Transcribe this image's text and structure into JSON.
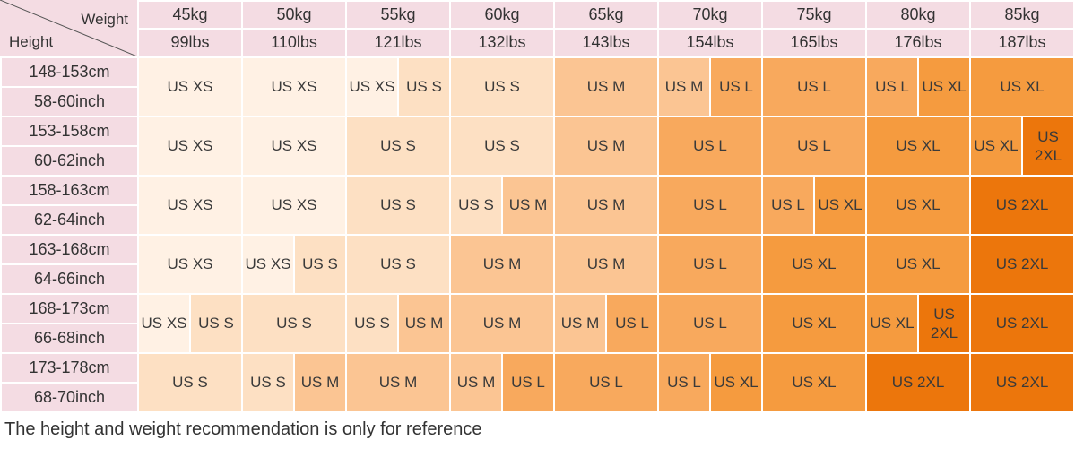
{
  "header": {
    "weight_label": "Weight",
    "height_label": "Height",
    "kg": [
      "45kg",
      "50kg",
      "55kg",
      "60kg",
      "65kg",
      "70kg",
      "75kg",
      "80kg",
      "85kg"
    ],
    "lbs": [
      "99lbs",
      "110lbs",
      "121lbs",
      "132lbs",
      "143lbs",
      "154lbs",
      "165lbs",
      "176lbs",
      "187lbs"
    ]
  },
  "rows": [
    {
      "cm": "148-153cm",
      "inch": "58-60inch",
      "cells": [
        [
          "US XS"
        ],
        [
          "US XS"
        ],
        [
          "US XS",
          "US S"
        ],
        [
          "US S"
        ],
        [
          "US M"
        ],
        [
          "US M",
          "US L"
        ],
        [
          "US L"
        ],
        [
          "US L",
          "US XL"
        ],
        [
          "US XL"
        ]
      ]
    },
    {
      "cm": "153-158cm",
      "inch": "60-62inch",
      "cells": [
        [
          "US XS"
        ],
        [
          "US XS"
        ],
        [
          "US S"
        ],
        [
          "US S"
        ],
        [
          "US M"
        ],
        [
          "US L"
        ],
        [
          "US L"
        ],
        [
          "US XL"
        ],
        [
          "US XL",
          "US\n2XL"
        ]
      ]
    },
    {
      "cm": "158-163cm",
      "inch": "62-64inch",
      "cells": [
        [
          "US XS"
        ],
        [
          "US XS"
        ],
        [
          "US S"
        ],
        [
          "US S",
          "US M"
        ],
        [
          "US M"
        ],
        [
          "US L"
        ],
        [
          "US L",
          "US XL"
        ],
        [
          "US XL"
        ],
        [
          "US 2XL"
        ]
      ]
    },
    {
      "cm": "163-168cm",
      "inch": "64-66inch",
      "cells": [
        [
          "US XS"
        ],
        [
          "US XS",
          "US S"
        ],
        [
          "US S"
        ],
        [
          "US M"
        ],
        [
          "US M"
        ],
        [
          "US L"
        ],
        [
          "US XL"
        ],
        [
          "US XL"
        ],
        [
          "US 2XL"
        ]
      ]
    },
    {
      "cm": "168-173cm",
      "inch": "66-68inch",
      "cells": [
        [
          "US XS",
          "US S"
        ],
        [
          "US S"
        ],
        [
          "US S",
          "US M"
        ],
        [
          "US M"
        ],
        [
          "US M",
          "US L"
        ],
        [
          "US L"
        ],
        [
          "US XL"
        ],
        [
          "US XL",
          "US\n2XL"
        ],
        [
          "US 2XL"
        ]
      ]
    },
    {
      "cm": "173-178cm",
      "inch": "68-70inch",
      "cells": [
        [
          "US S"
        ],
        [
          "US S",
          "US M"
        ],
        [
          "US M"
        ],
        [
          "US M",
          "US L"
        ],
        [
          "US L"
        ],
        [
          "US L",
          "US XL"
        ],
        [
          "US XL"
        ],
        [
          "US 2XL"
        ],
        [
          "US 2XL"
        ]
      ]
    }
  ],
  "size_colors": {
    "US XS": "#fff1e4",
    "US S": "#fde0c3",
    "US M": "#fbc593",
    "US L": "#f8a95d",
    "US XL": "#f59b3f",
    "US 2XL": "#ec760c"
  },
  "note": "The height and weight recommendation is only for reference"
}
